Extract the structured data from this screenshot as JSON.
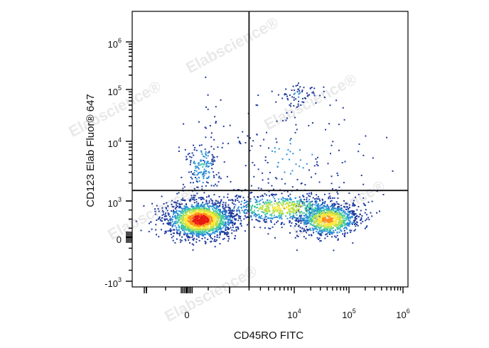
{
  "chart_data": {
    "type": "scatter",
    "subtype": "flow-cytometry-density-dot-plot",
    "title": "",
    "xlabel": "CD45RO FITC",
    "ylabel": "CD123  Elab Fluor® 647",
    "x_scale": "biexponential",
    "y_scale": "biexponential",
    "x_ticks": [
      {
        "base": "0",
        "exp": ""
      },
      {
        "base": "10",
        "exp": "4"
      },
      {
        "base": "10",
        "exp": "5"
      },
      {
        "base": "10",
        "exp": "6"
      }
    ],
    "y_ticks": [
      {
        "base": "-10",
        "exp": "3"
      },
      {
        "base": "0",
        "exp": ""
      },
      {
        "base": "10",
        "exp": "3"
      },
      {
        "base": "10",
        "exp": "4"
      },
      {
        "base": "10",
        "exp": "5"
      },
      {
        "base": "10",
        "exp": "6"
      }
    ],
    "quadrant_gate": {
      "x": 2000,
      "y": 1500
    },
    "populations": [
      {
        "label": "CD45RO- CD123 low",
        "x_center": 300,
        "y_center": 500,
        "density": "high"
      },
      {
        "label": "CD45RO+ CD123 low",
        "x_center": 40000,
        "y_center": 500,
        "density": "high"
      },
      {
        "label": "CD123+ (upper-left)",
        "x_center": 350,
        "y_center": 4000,
        "density": "low"
      },
      {
        "label": "CD45RO+ CD123 high",
        "x_center": 12000,
        "y_center": 80000,
        "density": "low"
      }
    ],
    "colormap": [
      "#1f3a9e",
      "#2a8fd8",
      "#3fc8a0",
      "#b8e048",
      "#ffe838",
      "#ff8c1a",
      "#e81a10"
    ],
    "grid": false,
    "legend": "none",
    "watermark": "Elabscience"
  }
}
